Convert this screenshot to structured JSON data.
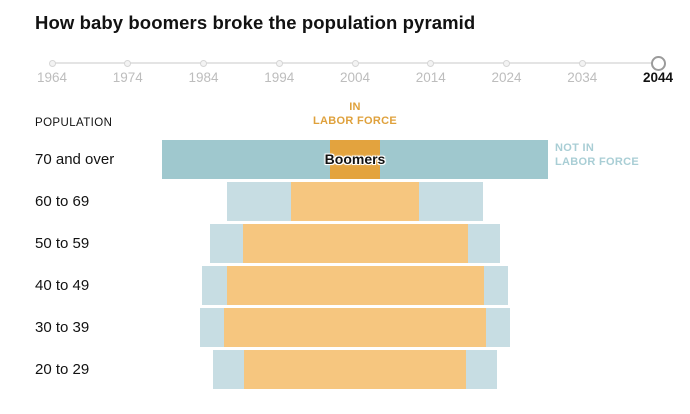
{
  "title": "How baby boomers broke the population pyramid",
  "timeline": {
    "years": [
      "1964",
      "1974",
      "1984",
      "1994",
      "2004",
      "2014",
      "2024",
      "2034",
      "2044"
    ],
    "selected_year": "2044"
  },
  "labels": {
    "population": "POPULATION",
    "in_labor_line1": "IN",
    "in_labor_line2": "LABOR FORCE",
    "not_in_labor_line1": "NOT IN",
    "not_in_labor_line2": "LABOR FORCE",
    "boomers": "Boomers"
  },
  "colors": {
    "title_text": "#121212",
    "year_inactive": "#bdbdbd",
    "year_active": "#121212",
    "in_labor_highlight": "#e3a33e",
    "in_labor_normal": "#f6c67f",
    "not_in_labor_highlight": "#9fc8ce",
    "not_in_labor_normal": "#c7dde3",
    "in_labor_label_text": "#dfa13c",
    "not_in_labor_label_text": "#a9ced5"
  },
  "chart_data": {
    "type": "bar",
    "subtype": "horizontal-stacked-pyramid",
    "title": "How baby boomers broke the population pyramid",
    "year_shown": "2044",
    "categories": [
      "70 and over",
      "60 to 69",
      "50 to 59",
      "40 to 49",
      "30 to 39",
      "20 to 29"
    ],
    "series": [
      {
        "name": "In labor force",
        "values": [
          50,
          128,
          225,
          257,
          262,
          222
        ]
      },
      {
        "name": "Not in labor force",
        "values": [
          336,
          128,
          65,
          49,
          48,
          62
        ]
      }
    ],
    "units": "relative population (proportional bar width, px)",
    "layout": "bars centered on a common vertical axis; in-labor segment centered inside total bar",
    "highlight": {
      "category": "70 and over",
      "label": "Boomers"
    },
    "legend_position": "in-labor label top center (orange); not-in-labor label right of first bar (light blue)",
    "grid": false
  }
}
